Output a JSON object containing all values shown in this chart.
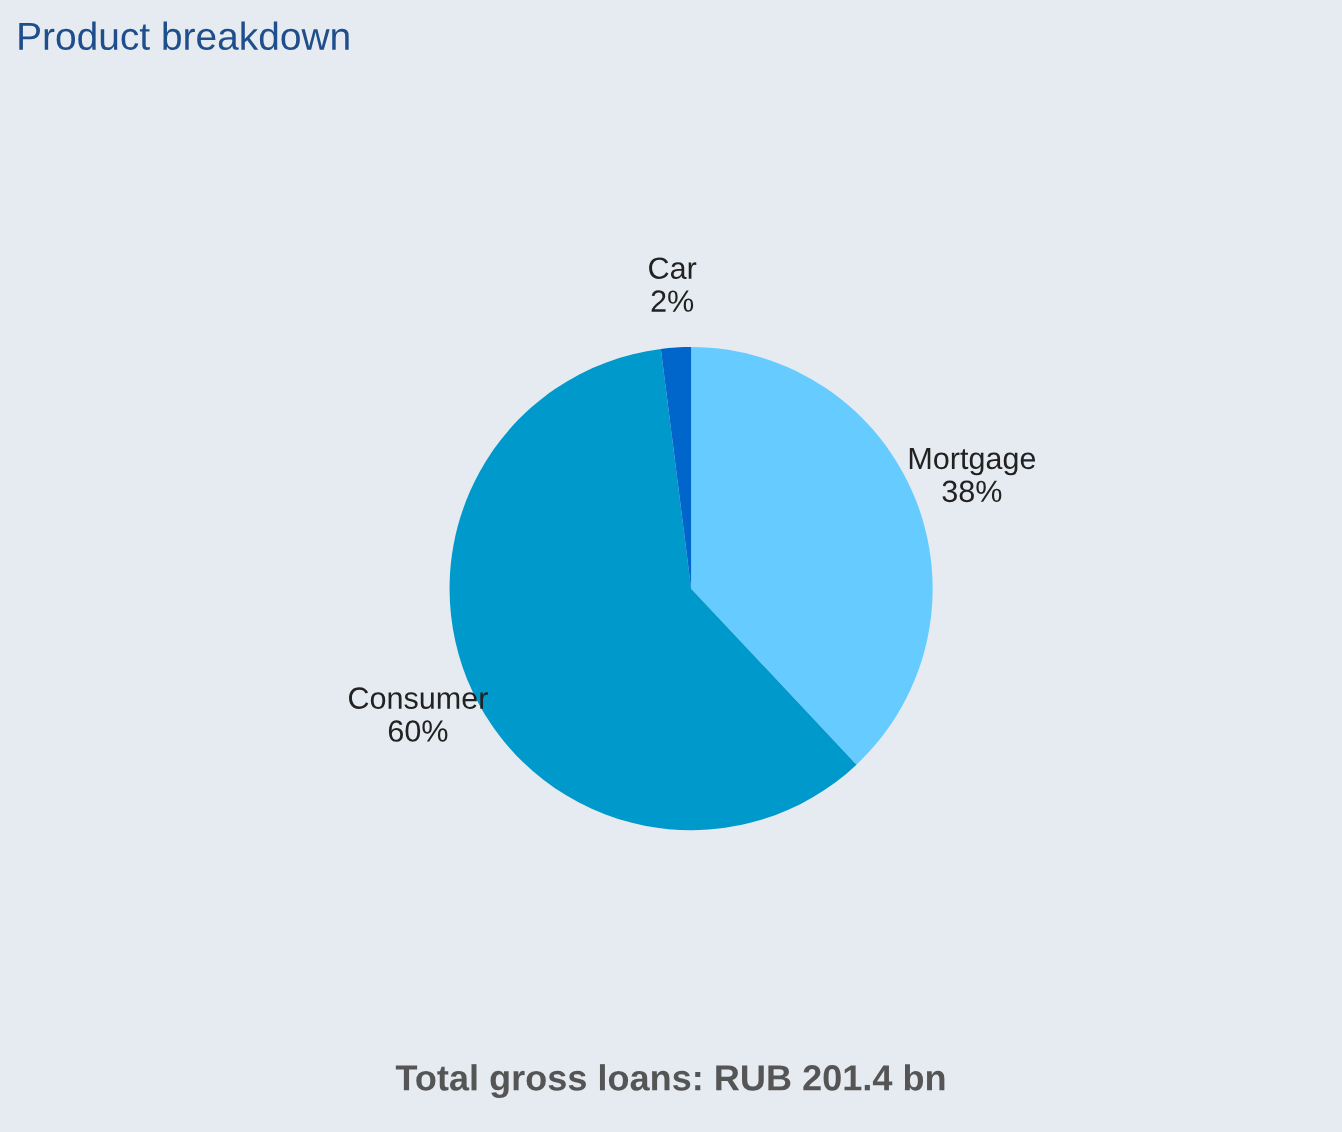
{
  "chart_data": {
    "type": "pie",
    "title": "Product breakdown",
    "categories": [
      "Mortgage",
      "Consumer",
      "Car"
    ],
    "values": [
      38,
      60,
      2
    ],
    "value_labels": [
      "38%",
      "60%",
      "2%"
    ],
    "colors": [
      "#66ccff",
      "#0099cc",
      "#0066cc"
    ],
    "annotations": [
      "Total gross loans: RUB 201.4 bn"
    ]
  }
}
